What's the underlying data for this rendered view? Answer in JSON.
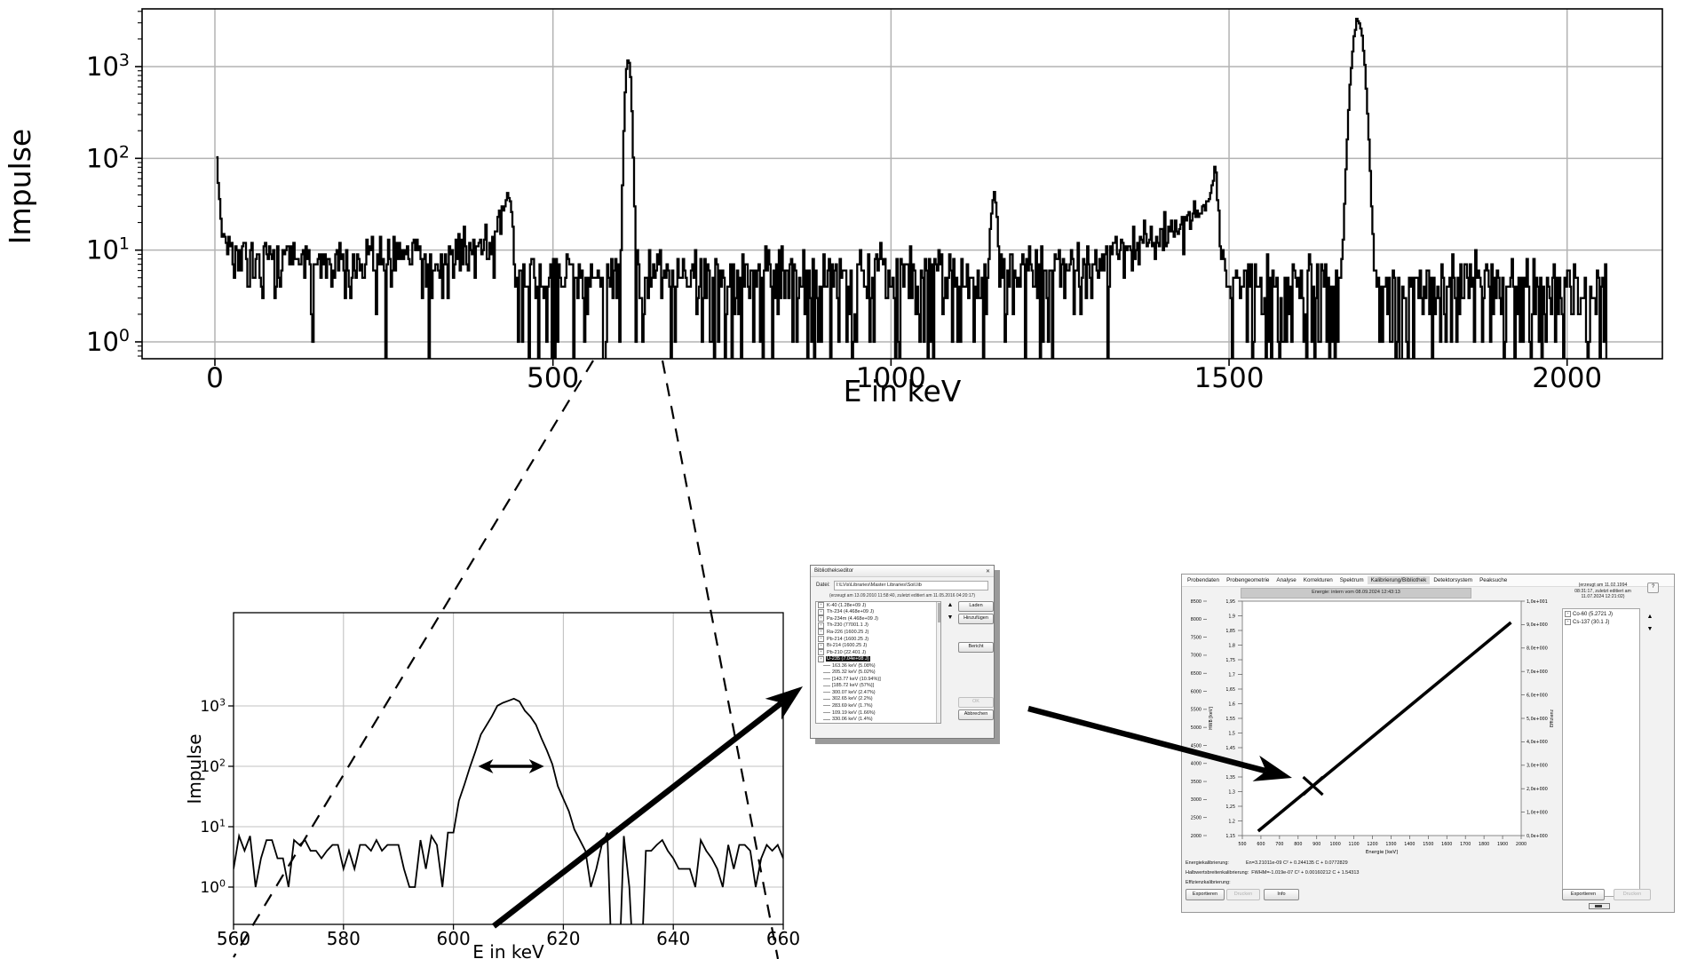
{
  "icons": {
    "up": "▲",
    "down": "▼",
    "close": "✕",
    "help": "?",
    "expander_plus": "+"
  },
  "chart_data": [
    {
      "id": "main_spectrum",
      "type": "line",
      "title": "",
      "xlabel": "E in keV",
      "ylabel": "Impulse",
      "log_y": true,
      "grid": true,
      "x_ticks": [
        0,
        500,
        1000,
        1500,
        2000
      ],
      "y_tick_exponents": [
        0,
        1,
        2,
        3
      ],
      "xlim_kev": [
        -108,
        2140
      ],
      "ylim": [
        0.15,
        4300
      ],
      "x_data_range": [
        2,
        2058
      ],
      "bin_kev": 2,
      "seed": 911,
      "baseline_knots": [
        [
          2,
          95
        ],
        [
          4,
          55
        ],
        [
          7,
          28
        ],
        [
          12,
          14
        ],
        [
          25,
          9.5
        ],
        [
          60,
          8.5
        ],
        [
          120,
          7.5
        ],
        [
          200,
          7.5
        ],
        [
          300,
          8.5
        ],
        [
          380,
          10.5
        ],
        [
          415,
          14
        ],
        [
          426,
          28
        ],
        [
          433,
          42
        ],
        [
          437,
          26
        ],
        [
          441,
          11
        ],
        [
          450,
          5.5
        ],
        [
          520,
          5
        ],
        [
          600,
          4.6
        ],
        [
          700,
          4.8
        ],
        [
          850,
          5
        ],
        [
          1000,
          5
        ],
        [
          1100,
          5.2
        ],
        [
          1140,
          6
        ],
        [
          1165,
          5.5
        ],
        [
          1200,
          5.8
        ],
        [
          1280,
          7
        ],
        [
          1350,
          9.5
        ],
        [
          1400,
          13
        ],
        [
          1435,
          19
        ],
        [
          1458,
          27
        ],
        [
          1470,
          36
        ],
        [
          1476,
          60
        ],
        [
          1479,
          92
        ],
        [
          1483,
          30
        ],
        [
          1487,
          10
        ],
        [
          1493,
          4.5
        ],
        [
          1550,
          3.8
        ],
        [
          1650,
          4.2
        ],
        [
          1750,
          3.8
        ],
        [
          1850,
          4
        ],
        [
          1950,
          4
        ],
        [
          2058,
          4.2
        ]
      ],
      "peaks": [
        {
          "center": 610.5,
          "sigma": 3.3,
          "amp": 1250
        },
        {
          "center": 1152,
          "sigma": 3.5,
          "amp": 34
        },
        {
          "center": 1690,
          "sigma": 6.5,
          "amp": 3200
        }
      ]
    },
    {
      "id": "inset_spectrum",
      "type": "line",
      "title": "",
      "xlabel": "E in keV",
      "ylabel": "Impulse",
      "log_y": true,
      "grid": true,
      "x_ticks": [
        560,
        580,
        600,
        620,
        640,
        660
      ],
      "y_tick_exponents": [
        0,
        1,
        2,
        3
      ],
      "xlim_kev": [
        560,
        660
      ],
      "ylim": [
        0.25,
        35000
      ],
      "x_data_range": [
        560,
        660
      ],
      "bin_kev": 1,
      "seed": 424,
      "baseline_knots": [
        [
          560,
          4.2
        ],
        [
          660,
          4.2
        ]
      ],
      "peaks": [
        {
          "center": 610.5,
          "sigma": 3.3,
          "amp": 1250
        }
      ],
      "forced_points": [
        [
          570,
          1
        ],
        [
          592,
          1
        ],
        [
          598,
          1
        ],
        [
          629.5,
          0
        ],
        [
          630.5,
          0
        ],
        [
          633.5,
          0
        ],
        [
          634.5,
          0
        ]
      ],
      "fwhm_arrow": {
        "y": 100,
        "x1": 604.5,
        "x2": 616.5
      }
    },
    {
      "id": "energy_calibration",
      "type": "line",
      "title": "",
      "xlabel": "Energie [keV]",
      "x_tick_labels": [
        "500",
        "600",
        "700",
        "800",
        "900",
        "1000",
        "1100",
        "1200",
        "1300",
        "1400",
        "1500",
        "1600",
        "1700",
        "1800",
        "1900",
        "2000"
      ],
      "left_outer_tick_labels": [
        "8500",
        "8000",
        "7500",
        "7000",
        "6500",
        "6000",
        "5500",
        "5000",
        "4500",
        "4000",
        "3500",
        "3000",
        "2500",
        "2000"
      ],
      "left_inner_tick_labels": [
        "1,95",
        "1,9",
        "1,85",
        "1,8",
        "1,75",
        "1,7",
        "1,65",
        "1,6",
        "1,55",
        "1,5",
        "1,45",
        "1,4",
        "1,35",
        "1,3",
        "1,25",
        "1,2",
        "1,15"
      ],
      "right_tick_labels": [
        "1,0e+001",
        "9,0e+000",
        "8,0e+000",
        "7,0e+000",
        "6,0e+000",
        "5,0e+000",
        "4,0e+000",
        "3,0e+000",
        "2,0e+000",
        "1,0e+000",
        "0,0e+000"
      ],
      "left_axis_label": "HWB [keV]",
      "right_axis_label": "Effizienz",
      "xlim_kev": [
        500,
        2000
      ],
      "line_x_kev": [
        585,
        1945
      ],
      "marker_x_kev": 880
    }
  ],
  "dialog": {
    "title": "Bibliothekseditor",
    "close_glyph": "✕",
    "datei_label": "Datei:",
    "file_path": "I:\\LVis\\Libraries\\Master Libraries\\Soil.lib",
    "created_note": "(erzeugt am 13.09.2010 11:58:40, zuletzt editiert am 11.05.2016 04:20:17)",
    "buttons": {
      "laden": "Laden",
      "hinzufuegen": "Hinzufügen",
      "bericht": "Bericht",
      "ok": "OK",
      "abbrechen": "Abbrechen"
    },
    "tree": [
      {
        "label": "K-40 (1.28e+09 J)",
        "level": 0
      },
      {
        "label": "Th-234 (4.468e+09 J)",
        "level": 0
      },
      {
        "label": "Pa-234m (4.468e+09 J)",
        "level": 0
      },
      {
        "label": "Th-230 (77001.1 J)",
        "level": 0
      },
      {
        "label": "Ra-226 (1600.25 J)",
        "level": 0
      },
      {
        "label": "Pb-214 (1600.25 J)",
        "level": 0
      },
      {
        "label": "Bi-214 (1600.25 J)",
        "level": 0
      },
      {
        "label": "Pb-210 (22.401 J)",
        "level": 0
      },
      {
        "label": "U-235 (7.04e+08 J)",
        "level": 0,
        "selected": true
      },
      {
        "label": "163.36 keV (5.08%)",
        "level": 1
      },
      {
        "label": "205.32 keV (5.02%)",
        "level": 1
      },
      {
        "label": "[143.77 keV (10.94%)]",
        "level": 1
      },
      {
        "label": "[185.72 keV (57%)]",
        "level": 1
      },
      {
        "label": "300.07 keV (2.47%)",
        "level": 1
      },
      {
        "label": "302.65 keV (2.2%)",
        "level": 1
      },
      {
        "label": "283.69 keV (1.7%)",
        "level": 1
      },
      {
        "label": "109.19 keV (1.66%)",
        "level": 1
      },
      {
        "label": "330.06 keV (1.4%)",
        "level": 1
      }
    ]
  },
  "right_window": {
    "menu": {
      "items": [
        "Probendaten",
        "Probengeometrie",
        "Analyse",
        "Korrekturen",
        "Spektrum",
        "Kalibrierung/Bibliothek",
        "Detektorsystem",
        "Peaksuche"
      ],
      "active_index": 5
    },
    "header": "Energie: intern vom 08.09.2024 12:43:13",
    "created_lines": [
      "(erzeugt am 11.02.1994",
      "08:31:17, zuletzt editiert am",
      "11.07.2024 12:21:02)"
    ],
    "nuclides": [
      "Co-60 (5.2721 J)",
      "Cs-137 (30.1 J)"
    ],
    "footer": {
      "energie_label": "Energiekalibrierung:",
      "energie_formula": "En=3.21011e-09 C² + 0.244135 C + 0.0772829",
      "hwb_label": "Halbwertsbreitenkalibrierung:",
      "hwb_formula": "FWHM=-1.019e-07 C² + 0.00160212 C + 1.54313",
      "eff_label": "Effizienzkalibrierung:"
    },
    "buttons_left": [
      "Exportieren",
      "Drucken",
      "Info"
    ],
    "buttons_right": [
      "Exportieren",
      "Drucken"
    ]
  }
}
